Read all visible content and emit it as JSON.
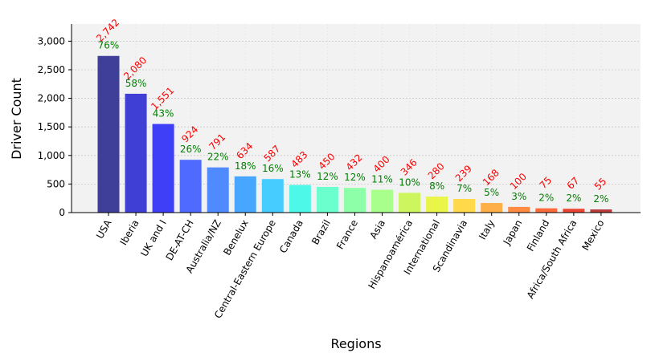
{
  "chart_data": {
    "type": "bar",
    "title": "",
    "xlabel": "Regions",
    "ylabel": "Driver Count",
    "ylim": [
      0,
      3300
    ],
    "yticks": [
      0,
      500,
      1000,
      1500,
      2000,
      2500,
      3000
    ],
    "ytick_labels": [
      "0",
      "500",
      "1,000",
      "1,500",
      "2,000",
      "2,500",
      "3,000"
    ],
    "grid": true,
    "categories": [
      "USA",
      "Iberia",
      "UK and I",
      "DE-AT-CH",
      "Australia/NZ",
      "Benelux",
      "Central-Eastern Europe",
      "Canada",
      "Brazil",
      "France",
      "Asia",
      "Hispanoamérica",
      "International",
      "Scandinavia",
      "Italy",
      "Japan",
      "Finland",
      "Africa/South Africa",
      "Mexico"
    ],
    "values": [
      2742,
      2080,
      1551,
      924,
      791,
      634,
      587,
      483,
      450,
      432,
      400,
      346,
      280,
      239,
      168,
      100,
      75,
      67,
      55
    ],
    "value_labels": [
      "2,742",
      "2,080",
      "1,551",
      "924",
      "791",
      "634",
      "587",
      "483",
      "450",
      "432",
      "400",
      "346",
      "280",
      "239",
      "168",
      "100",
      "75",
      "67",
      "55"
    ],
    "percent_labels": [
      "76%",
      "58%",
      "43%",
      "26%",
      "22%",
      "18%",
      "16%",
      "13%",
      "12%",
      "12%",
      "11%",
      "10%",
      "8%",
      "7%",
      "5%",
      "3%",
      "2%",
      "2%",
      "2%"
    ],
    "colors": [
      "#3f3f9a",
      "#3f3fd6",
      "#3f3ff8",
      "#4f6bff",
      "#4f8bff",
      "#47a6ff",
      "#47ccff",
      "#4ef8e8",
      "#6affcc",
      "#8cffa8",
      "#a8ff8c",
      "#ccf55e",
      "#eaf54a",
      "#ffd94a",
      "#ffaf47",
      "#ff8c42",
      "#ff6a3a",
      "#ec4433",
      "#b83a3a"
    ],
    "value_label_color": "#ff0000",
    "percent_label_color": "#008000",
    "plot_background": "#f2f2f2"
  }
}
